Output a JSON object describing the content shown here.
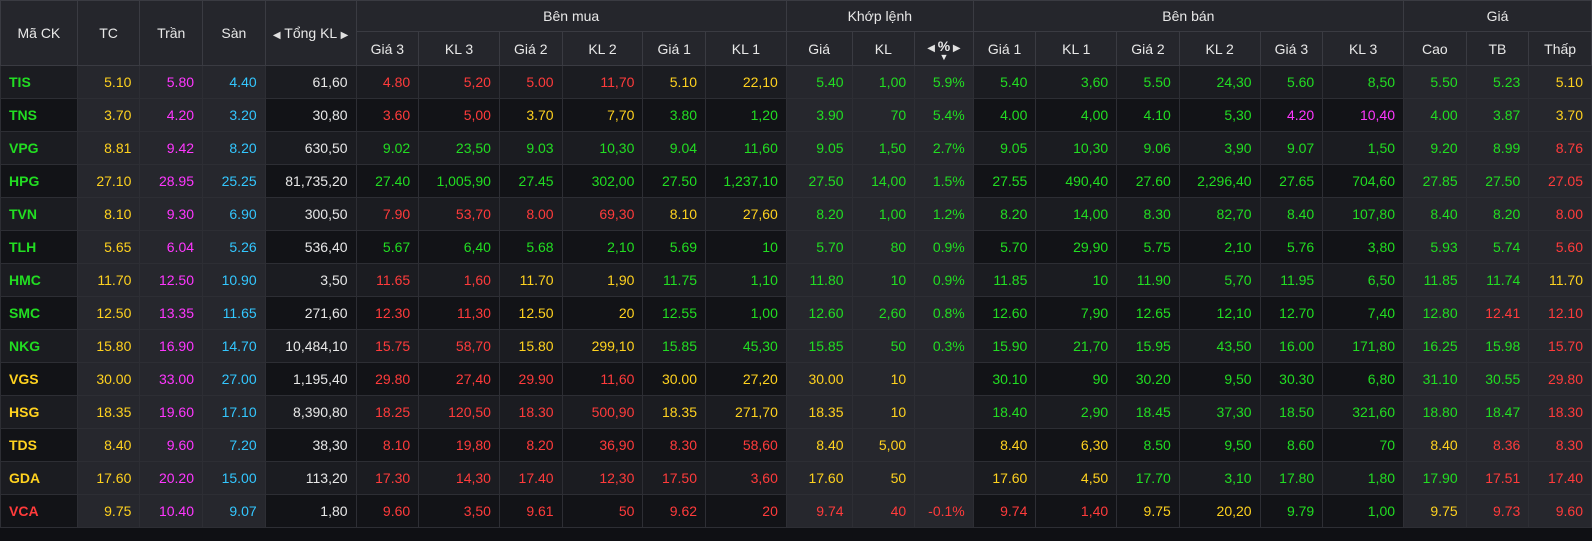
{
  "headers": {
    "symbol": "Mã CK",
    "ref": "TC",
    "ceiling": "Trần",
    "floor": "Sàn",
    "total_vol": "Tổng KL",
    "buy_group": "Bên mua",
    "match_group": "Khớp lệnh",
    "sell_group": "Bên bán",
    "price_group": "Giá",
    "buy_cols": [
      "Giá 3",
      "KL 3",
      "Giá 2",
      "KL 2",
      "Giá 1",
      "KL 1"
    ],
    "match_cols": [
      "Giá",
      "KL",
      "%"
    ],
    "sell_cols": [
      "Giá 1",
      "KL 1",
      "Giá 2",
      "KL 2",
      "Giá 3",
      "KL 3"
    ],
    "price_cols": [
      "Cao",
      "TB",
      "Thấp"
    ]
  },
  "colors": {
    "up": "#22dd22",
    "down": "#ff3b3b",
    "ref": "#ffd21f",
    "ceiling": "#ff37ff",
    "floor": "#33c7ff",
    "neutral": "#e8e8e8"
  },
  "rows": [
    {
      "c": [
        "TIS",
        "5.10",
        "5.80",
        "4.40",
        "61,60",
        "4.80",
        "5,20",
        "5.00",
        "11,70",
        "5.10",
        "22,10",
        "5.40",
        "1,00",
        "5.9%",
        "5.40",
        "3,60",
        "5.50",
        "24,30",
        "5.60",
        "8,50",
        "5.50",
        "5.23",
        "5.10"
      ],
      "k": [
        "u",
        "r",
        "c",
        "f",
        "n",
        "d",
        "d",
        "d",
        "d",
        "r",
        "r",
        "u",
        "u",
        "u",
        "u",
        "u",
        "u",
        "u",
        "u",
        "u",
        "u",
        "u",
        "r"
      ]
    },
    {
      "c": [
        "TNS",
        "3.70",
        "4.20",
        "3.20",
        "30,80",
        "3.60",
        "5,00",
        "3.70",
        "7,70",
        "3.80",
        "1,20",
        "3.90",
        "70",
        "5.4%",
        "4.00",
        "4,00",
        "4.10",
        "5,30",
        "4.20",
        "10,40",
        "4.00",
        "3.87",
        "3.70"
      ],
      "k": [
        "u",
        "r",
        "c",
        "f",
        "n",
        "d",
        "d",
        "r",
        "r",
        "u",
        "u",
        "u",
        "u",
        "u",
        "u",
        "u",
        "u",
        "u",
        "c",
        "c",
        "u",
        "u",
        "r"
      ]
    },
    {
      "c": [
        "VPG",
        "8.81",
        "9.42",
        "8.20",
        "630,50",
        "9.02",
        "23,50",
        "9.03",
        "10,30",
        "9.04",
        "11,60",
        "9.05",
        "1,50",
        "2.7%",
        "9.05",
        "10,30",
        "9.06",
        "3,90",
        "9.07",
        "1,50",
        "9.20",
        "8.99",
        "8.76"
      ],
      "k": [
        "u",
        "r",
        "c",
        "f",
        "n",
        "u",
        "u",
        "u",
        "u",
        "u",
        "u",
        "u",
        "u",
        "u",
        "u",
        "u",
        "u",
        "u",
        "u",
        "u",
        "u",
        "u",
        "d"
      ]
    },
    {
      "c": [
        "HPG",
        "27.10",
        "28.95",
        "25.25",
        "81,735,20",
        "27.40",
        "1,005,90",
        "27.45",
        "302,00",
        "27.50",
        "1,237,10",
        "27.50",
        "14,00",
        "1.5%",
        "27.55",
        "490,40",
        "27.60",
        "2,296,40",
        "27.65",
        "704,60",
        "27.85",
        "27.50",
        "27.05"
      ],
      "k": [
        "u",
        "r",
        "c",
        "f",
        "n",
        "u",
        "u",
        "u",
        "u",
        "u",
        "u",
        "u",
        "u",
        "u",
        "u",
        "u",
        "u",
        "u",
        "u",
        "u",
        "u",
        "u",
        "d"
      ]
    },
    {
      "c": [
        "TVN",
        "8.10",
        "9.30",
        "6.90",
        "300,50",
        "7.90",
        "53,70",
        "8.00",
        "69,30",
        "8.10",
        "27,60",
        "8.20",
        "1,00",
        "1.2%",
        "8.20",
        "14,00",
        "8.30",
        "82,70",
        "8.40",
        "107,80",
        "8.40",
        "8.20",
        "8.00"
      ],
      "k": [
        "u",
        "r",
        "c",
        "f",
        "n",
        "d",
        "d",
        "d",
        "d",
        "r",
        "r",
        "u",
        "u",
        "u",
        "u",
        "u",
        "u",
        "u",
        "u",
        "u",
        "u",
        "u",
        "d"
      ]
    },
    {
      "c": [
        "TLH",
        "5.65",
        "6.04",
        "5.26",
        "536,40",
        "5.67",
        "6,40",
        "5.68",
        "2,10",
        "5.69",
        "10",
        "5.70",
        "80",
        "0.9%",
        "5.70",
        "29,90",
        "5.75",
        "2,10",
        "5.76",
        "3,80",
        "5.93",
        "5.74",
        "5.60"
      ],
      "k": [
        "u",
        "r",
        "c",
        "f",
        "n",
        "u",
        "u",
        "u",
        "u",
        "u",
        "u",
        "u",
        "u",
        "u",
        "u",
        "u",
        "u",
        "u",
        "u",
        "u",
        "u",
        "u",
        "d"
      ]
    },
    {
      "c": [
        "HMC",
        "11.70",
        "12.50",
        "10.90",
        "3,50",
        "11.65",
        "1,60",
        "11.70",
        "1,90",
        "11.75",
        "1,10",
        "11.80",
        "10",
        "0.9%",
        "11.85",
        "10",
        "11.90",
        "5,70",
        "11.95",
        "6,50",
        "11.85",
        "11.74",
        "11.70"
      ],
      "k": [
        "u",
        "r",
        "c",
        "f",
        "n",
        "d",
        "d",
        "r",
        "r",
        "u",
        "u",
        "u",
        "u",
        "u",
        "u",
        "u",
        "u",
        "u",
        "u",
        "u",
        "u",
        "u",
        "r"
      ]
    },
    {
      "c": [
        "SMC",
        "12.50",
        "13.35",
        "11.65",
        "271,60",
        "12.30",
        "11,30",
        "12.50",
        "20",
        "12.55",
        "1,00",
        "12.60",
        "2,60",
        "0.8%",
        "12.60",
        "7,90",
        "12.65",
        "12,10",
        "12.70",
        "7,40",
        "12.80",
        "12.41",
        "12.10"
      ],
      "k": [
        "u",
        "r",
        "c",
        "f",
        "n",
        "d",
        "d",
        "r",
        "r",
        "u",
        "u",
        "u",
        "u",
        "u",
        "u",
        "u",
        "u",
        "u",
        "u",
        "u",
        "u",
        "d",
        "d"
      ]
    },
    {
      "c": [
        "NKG",
        "15.80",
        "16.90",
        "14.70",
        "10,484,10",
        "15.75",
        "58,70",
        "15.80",
        "299,10",
        "15.85",
        "45,30",
        "15.85",
        "50",
        "0.3%",
        "15.90",
        "21,70",
        "15.95",
        "43,50",
        "16.00",
        "171,80",
        "16.25",
        "15.98",
        "15.70"
      ],
      "k": [
        "u",
        "r",
        "c",
        "f",
        "n",
        "d",
        "d",
        "r",
        "r",
        "u",
        "u",
        "u",
        "u",
        "u",
        "u",
        "u",
        "u",
        "u",
        "u",
        "u",
        "u",
        "u",
        "d"
      ]
    },
    {
      "c": [
        "VGS",
        "30.00",
        "33.00",
        "27.00",
        "1,195,40",
        "29.80",
        "27,40",
        "29.90",
        "11,60",
        "30.00",
        "27,20",
        "30.00",
        "10",
        "",
        "30.10",
        "90",
        "30.20",
        "9,50",
        "30.30",
        "6,80",
        "31.10",
        "30.55",
        "29.80"
      ],
      "k": [
        "r",
        "r",
        "c",
        "f",
        "n",
        "d",
        "d",
        "d",
        "d",
        "r",
        "r",
        "r",
        "r",
        "r",
        "u",
        "u",
        "u",
        "u",
        "u",
        "u",
        "u",
        "u",
        "d"
      ]
    },
    {
      "c": [
        "HSG",
        "18.35",
        "19.60",
        "17.10",
        "8,390,80",
        "18.25",
        "120,50",
        "18.30",
        "500,90",
        "18.35",
        "271,70",
        "18.35",
        "10",
        "",
        "18.40",
        "2,90",
        "18.45",
        "37,30",
        "18.50",
        "321,60",
        "18.80",
        "18.47",
        "18.30"
      ],
      "k": [
        "r",
        "r",
        "c",
        "f",
        "n",
        "d",
        "d",
        "d",
        "d",
        "r",
        "r",
        "r",
        "r",
        "r",
        "u",
        "u",
        "u",
        "u",
        "u",
        "u",
        "u",
        "u",
        "d"
      ]
    },
    {
      "c": [
        "TDS",
        "8.40",
        "9.60",
        "7.20",
        "38,30",
        "8.10",
        "19,80",
        "8.20",
        "36,90",
        "8.30",
        "58,60",
        "8.40",
        "5,00",
        "",
        "8.40",
        "6,30",
        "8.50",
        "9,50",
        "8.60",
        "70",
        "8.40",
        "8.36",
        "8.30"
      ],
      "k": [
        "r",
        "r",
        "c",
        "f",
        "n",
        "d",
        "d",
        "d",
        "d",
        "d",
        "d",
        "r",
        "r",
        "r",
        "r",
        "r",
        "u",
        "u",
        "u",
        "u",
        "r",
        "d",
        "d"
      ]
    },
    {
      "c": [
        "GDA",
        "17.60",
        "20.20",
        "15.00",
        "113,20",
        "17.30",
        "14,30",
        "17.40",
        "12,30",
        "17.50",
        "3,60",
        "17.60",
        "50",
        "",
        "17.60",
        "4,50",
        "17.70",
        "3,10",
        "17.80",
        "1,80",
        "17.90",
        "17.51",
        "17.40"
      ],
      "k": [
        "r",
        "r",
        "c",
        "f",
        "n",
        "d",
        "d",
        "d",
        "d",
        "d",
        "d",
        "r",
        "r",
        "r",
        "r",
        "r",
        "u",
        "u",
        "u",
        "u",
        "u",
        "d",
        "d"
      ]
    },
    {
      "c": [
        "VCA",
        "9.75",
        "10.40",
        "9.07",
        "1,80",
        "9.60",
        "3,50",
        "9.61",
        "50",
        "9.62",
        "20",
        "9.74",
        "40",
        "-0.1%",
        "9.74",
        "1,40",
        "9.75",
        "20,20",
        "9.79",
        "1,00",
        "9.75",
        "9.73",
        "9.60"
      ],
      "k": [
        "d",
        "r",
        "c",
        "f",
        "n",
        "d",
        "d",
        "d",
        "d",
        "d",
        "d",
        "d",
        "d",
        "d",
        "d",
        "d",
        "r",
        "r",
        "u",
        "u",
        "r",
        "d",
        "d"
      ]
    }
  ]
}
